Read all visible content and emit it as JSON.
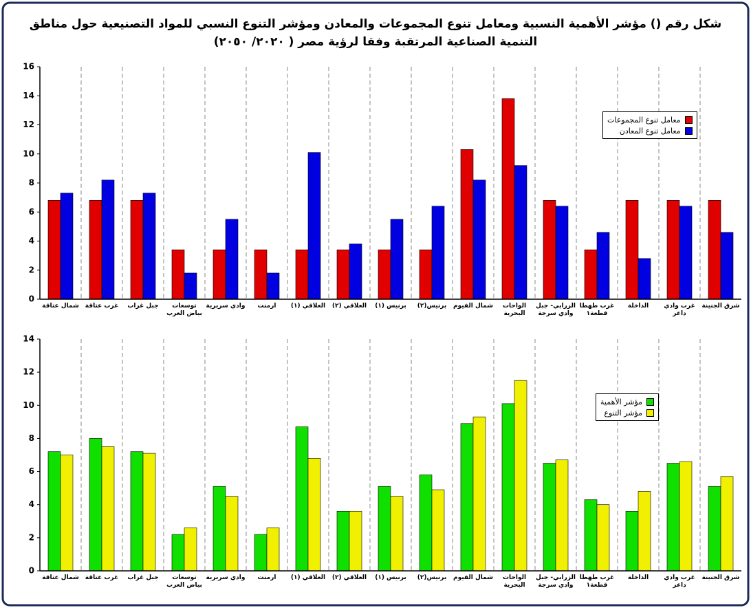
{
  "title": "شكل رقم () مؤشر الأهمية النسبية ومعامل تنوع المجموعات والمعادن ومؤشر التنوع النسبي للمواد التصنيعية حول مناطق التنمية الصناعية المرتقبة وفقا لرؤية مصر ( ٢٠٢٠/ ٢٠٥٠)",
  "chart_data": [
    {
      "type": "bar",
      "categories": [
        "شمال عتاقة",
        "غرب عتاقة",
        "جبل غراب",
        "توسعات بياض العرب",
        "وادي سريرية",
        "أرمنت",
        "العلاقي (١)",
        "العلاقي (٢)",
        "برنيس (١)",
        "برنيس(٢)",
        "شمال الفيوم",
        "الواحات البحرية",
        "الزرابي- جبل وادي سرجة",
        "غرب طهطا قطعة١",
        "الداخلة",
        "غرب وادي داعر",
        "شرق الجنينة"
      ],
      "series": [
        {
          "name": "معامل تنوع المجموعات",
          "color": "#e00000",
          "values": [
            6.8,
            6.8,
            6.8,
            3.4,
            3.4,
            3.4,
            3.4,
            3.4,
            3.4,
            3.4,
            10.3,
            13.8,
            6.8,
            3.4,
            6.8,
            6.8,
            6.8
          ]
        },
        {
          "name": "معامل تنوع المعادن",
          "color": "#0000e0",
          "values": [
            7.3,
            8.2,
            7.3,
            1.8,
            5.5,
            1.8,
            10.1,
            3.8,
            5.5,
            6.4,
            8.2,
            9.2,
            6.4,
            4.6,
            2.8,
            6.4,
            4.6
          ]
        }
      ],
      "ylim": [
        0,
        16
      ],
      "yticks": [
        0,
        2,
        4,
        6,
        8,
        10,
        12,
        14,
        16
      ],
      "legend": "upper right"
    },
    {
      "type": "bar",
      "categories": [
        "شمال عتاقة",
        "غرب عتاقة",
        "جبل غراب",
        "توسعات بياض العرب",
        "وادي سريرية",
        "أرمنت",
        "العلاقي (١)",
        "العلاقي (٢)",
        "برنيس (١)",
        "برنيس(٢)",
        "شمال الفيوم",
        "الواحات البحرية",
        "الزرابي- جبل وادي سرجة",
        "غرب طهطا قطعة١",
        "الداخلة",
        "غرب وادي داعر",
        "شرق الجنينة"
      ],
      "series": [
        {
          "name": "مؤشر الأهمية",
          "color": "#10e000",
          "values": [
            7.2,
            8.0,
            7.2,
            2.2,
            5.1,
            2.2,
            8.7,
            3.6,
            5.1,
            5.8,
            8.9,
            10.1,
            6.5,
            4.3,
            3.6,
            6.5,
            5.1
          ]
        },
        {
          "name": "مؤشر التنوع",
          "color": "#f0f000",
          "values": [
            7.0,
            7.5,
            7.1,
            2.6,
            4.5,
            2.6,
            6.8,
            3.6,
            4.5,
            4.9,
            9.3,
            11.5,
            6.7,
            4.0,
            4.8,
            6.6,
            5.7
          ]
        }
      ],
      "ylim": [
        0,
        14
      ],
      "yticks": [
        0,
        2,
        4,
        6,
        8,
        10,
        12,
        14
      ],
      "legend": "upper right"
    }
  ]
}
